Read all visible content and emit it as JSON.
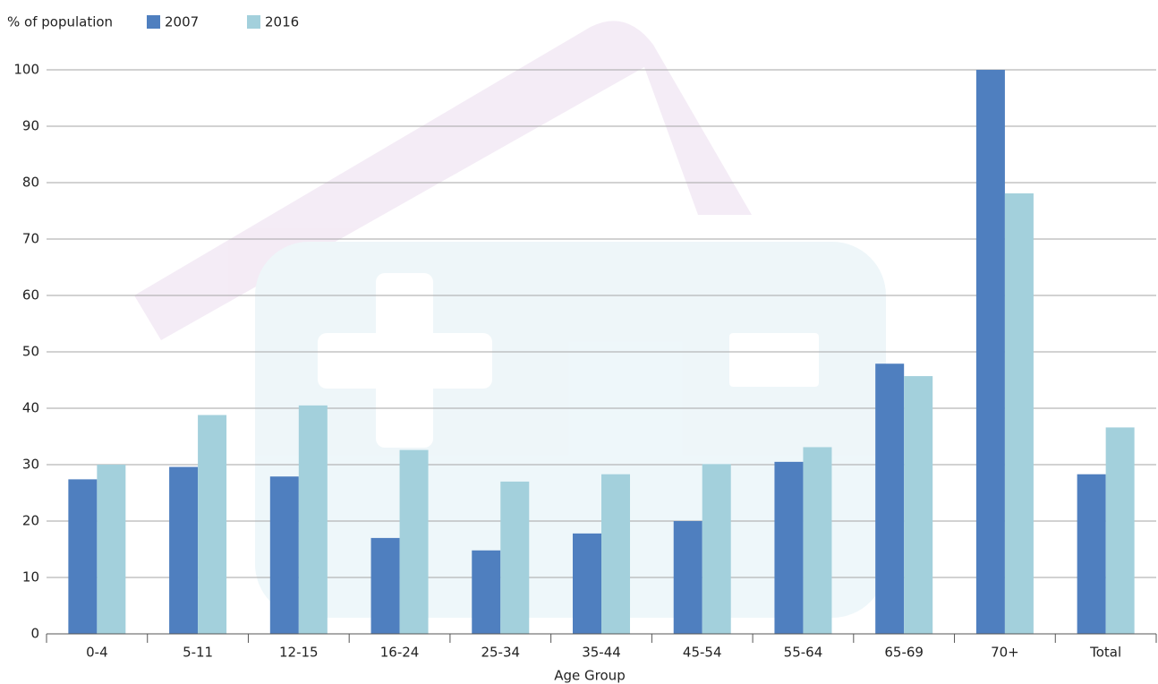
{
  "chart_data": {
    "type": "bar",
    "y_axis_label": "% of population",
    "x_axis_label": "Age Group",
    "categories": [
      "0-4",
      "5-11",
      "12-15",
      "16-24",
      "25-34",
      "35-44",
      "45-54",
      "55-64",
      "65-69",
      "70+",
      "Total"
    ],
    "series": [
      {
        "name": "2007",
        "color": "#4f7fbf",
        "values": [
          27.4,
          29.6,
          27.9,
          17,
          14.8,
          17.8,
          20,
          30.5,
          47.9,
          100,
          28.3
        ]
      },
      {
        "name": "2016",
        "color": "#a3d0dc",
        "values": [
          30,
          38.8,
          40.5,
          32.6,
          27,
          28.3,
          30.1,
          33.1,
          45.7,
          78.1,
          36.6
        ]
      }
    ],
    "ylim": [
      0,
      100
    ],
    "yticks": [
      0,
      10,
      20,
      30,
      40,
      50,
      60,
      70,
      80,
      90,
      100
    ],
    "grid": true
  }
}
